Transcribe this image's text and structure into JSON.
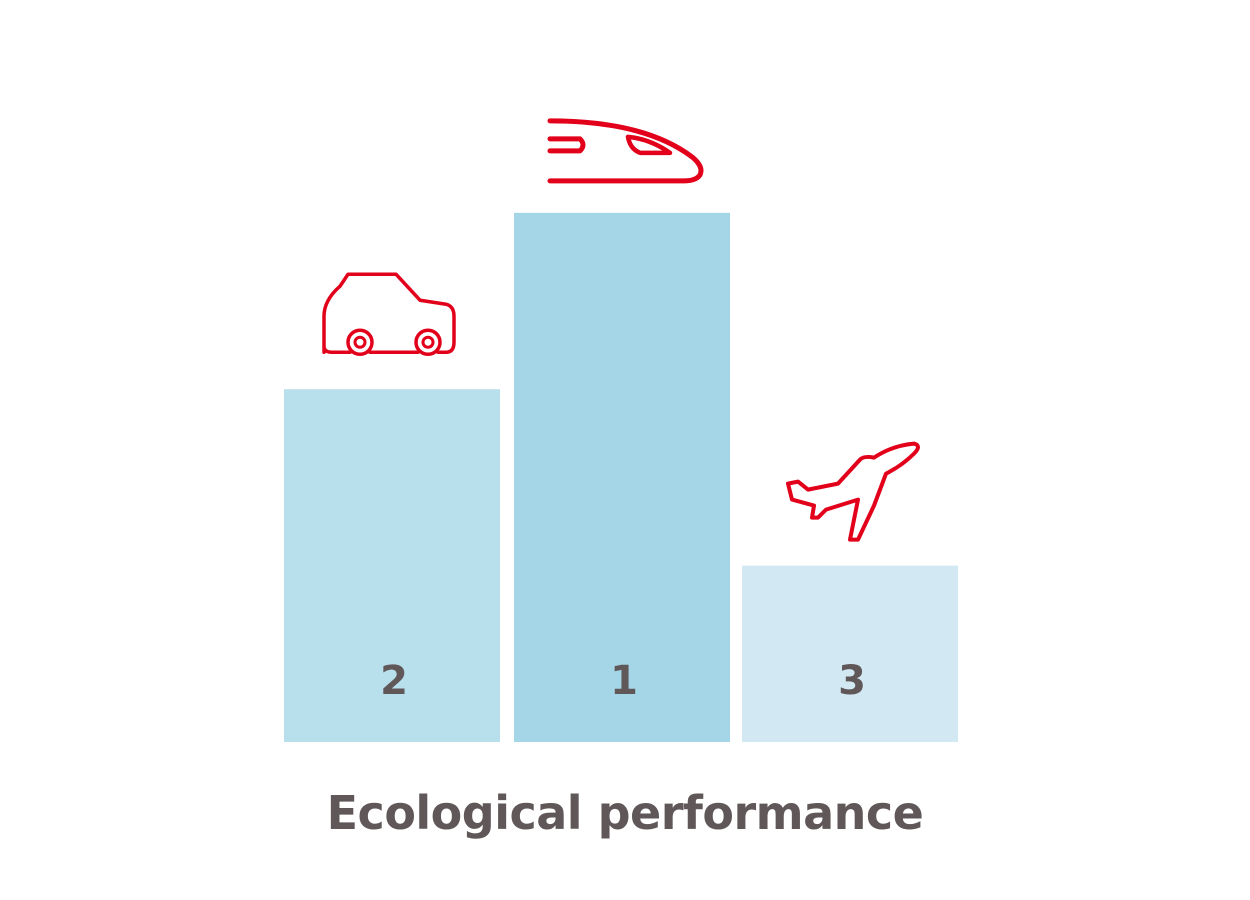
{
  "caption": "Ecological performance",
  "colors": {
    "icon": "#e2001a",
    "text": "#5f5758"
  },
  "chart_data": {
    "type": "bar",
    "categories": [
      "car",
      "train",
      "plane"
    ],
    "ranks": [
      "2",
      "1",
      "3"
    ],
    "values": [
      2,
      3,
      1
    ],
    "icons": [
      "car-icon",
      "train-icon",
      "plane-icon"
    ],
    "bar_colors": [
      "#b8dfec",
      "#a5d6e8",
      "#d2e9f3"
    ],
    "ylim": [
      0,
      3.6
    ]
  }
}
